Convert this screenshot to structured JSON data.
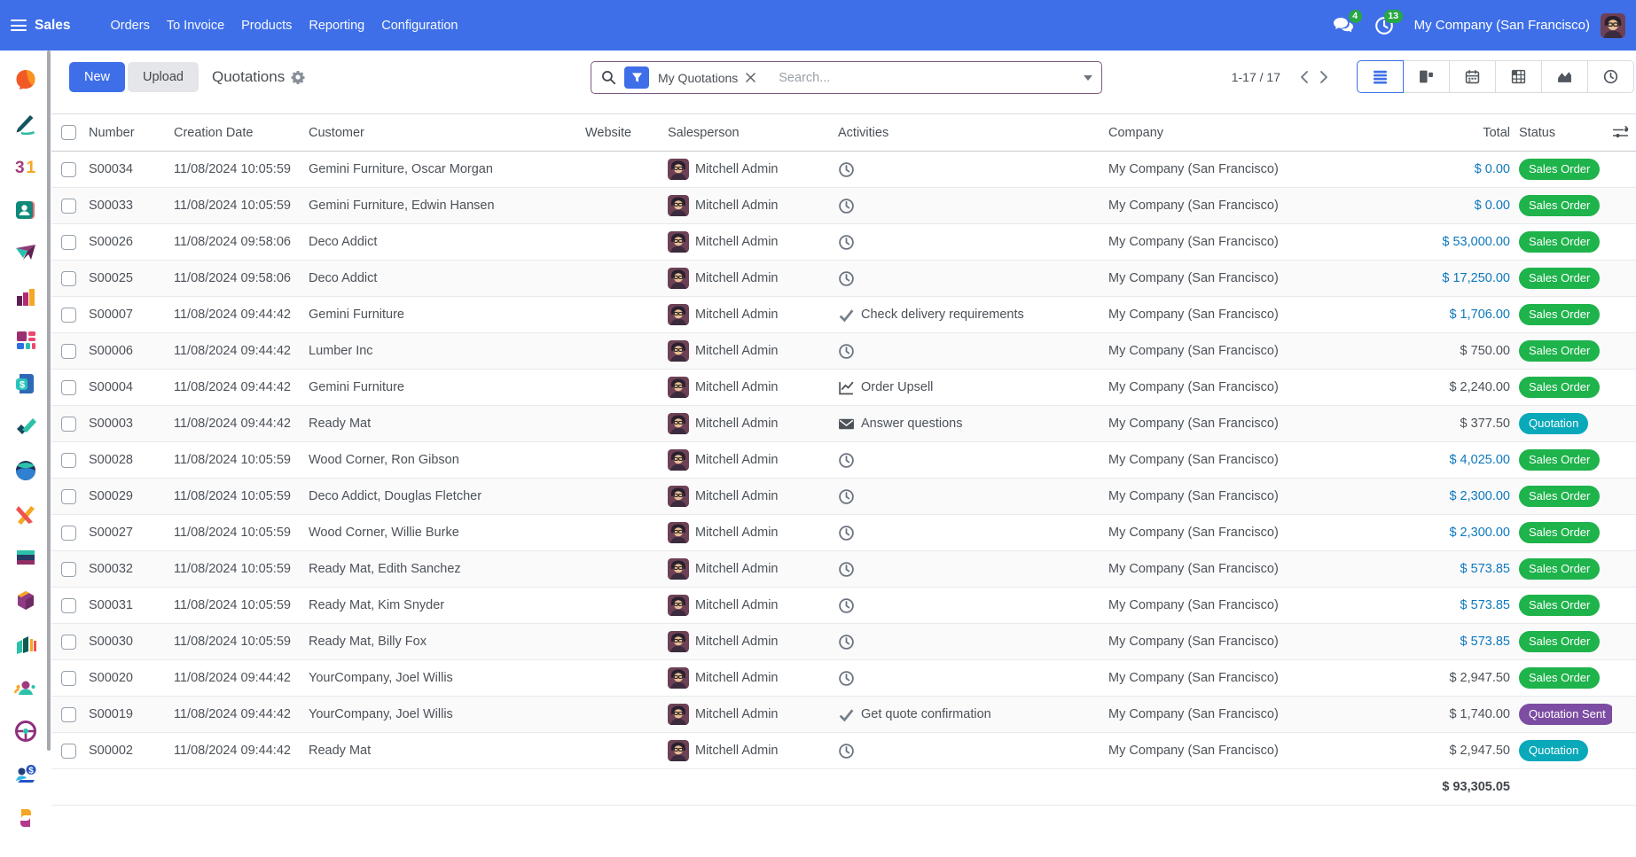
{
  "topbar": {
    "app_name": "Sales",
    "menus": [
      "Orders",
      "To Invoice",
      "Products",
      "Reporting",
      "Configuration"
    ],
    "messages_badge": "4",
    "activities_badge": "13",
    "company": "My Company (San Francisco)"
  },
  "sidebar": {
    "app_icons": [
      "discuss",
      "knowledge",
      "calendar",
      "contacts",
      "crm",
      "sales",
      "dashboards",
      "accounting",
      "todo",
      "website",
      "expenses",
      "elearning",
      "inventory",
      "marketing",
      "employees",
      "fleet",
      "payroll",
      "studio"
    ]
  },
  "control_panel": {
    "new_label": "New",
    "upload_label": "Upload",
    "title": "Quotations",
    "search": {
      "placeholder": "Search...",
      "filter": "My Quotations"
    },
    "pager": "1-17 / 17"
  },
  "table": {
    "columns": [
      "Number",
      "Creation Date",
      "Customer",
      "Website",
      "Salesperson",
      "Activities",
      "Company",
      "Total",
      "Status"
    ],
    "footer_total": "$ 93,305.05",
    "rows": [
      {
        "number": "S00034",
        "date": "11/08/2024 10:05:59",
        "customer": "Gemini Furniture, Oscar Morgan",
        "website": "",
        "salesperson": "Mitchell Admin",
        "activity_icon": "clock",
        "activity_label": "",
        "company": "My Company (San Francisco)",
        "total": "$ 0.00",
        "total_link": true,
        "status": "Sales Order",
        "status_variant": "success"
      },
      {
        "number": "S00033",
        "date": "11/08/2024 10:05:59",
        "customer": "Gemini Furniture, Edwin Hansen",
        "website": "",
        "salesperson": "Mitchell Admin",
        "activity_icon": "clock",
        "activity_label": "",
        "company": "My Company (San Francisco)",
        "total": "$ 0.00",
        "total_link": true,
        "status": "Sales Order",
        "status_variant": "success"
      },
      {
        "number": "S00026",
        "date": "11/08/2024 09:58:06",
        "customer": "Deco Addict",
        "website": "",
        "salesperson": "Mitchell Admin",
        "activity_icon": "clock",
        "activity_label": "",
        "company": "My Company (San Francisco)",
        "total": "$ 53,000.00",
        "total_link": true,
        "status": "Sales Order",
        "status_variant": "success"
      },
      {
        "number": "S00025",
        "date": "11/08/2024 09:58:06",
        "customer": "Deco Addict",
        "website": "",
        "salesperson": "Mitchell Admin",
        "activity_icon": "clock",
        "activity_label": "",
        "company": "My Company (San Francisco)",
        "total": "$ 17,250.00",
        "total_link": true,
        "status": "Sales Order",
        "status_variant": "success"
      },
      {
        "number": "S00007",
        "date": "11/08/2024 09:44:42",
        "customer": "Gemini Furniture",
        "website": "",
        "salesperson": "Mitchell Admin",
        "activity_icon": "check",
        "activity_label": "Check delivery requirements",
        "company": "My Company (San Francisco)",
        "total": "$ 1,706.00",
        "total_link": true,
        "status": "Sales Order",
        "status_variant": "success"
      },
      {
        "number": "S00006",
        "date": "11/08/2024 09:44:42",
        "customer": "Lumber Inc",
        "website": "",
        "salesperson": "Mitchell Admin",
        "activity_icon": "clock",
        "activity_label": "",
        "company": "My Company (San Francisco)",
        "total": "$ 750.00",
        "total_link": false,
        "status": "Sales Order",
        "status_variant": "success"
      },
      {
        "number": "S00004",
        "date": "11/08/2024 09:44:42",
        "customer": "Gemini Furniture",
        "website": "",
        "salesperson": "Mitchell Admin",
        "activity_icon": "chart",
        "activity_label": "Order Upsell",
        "company": "My Company (San Francisco)",
        "total": "$ 2,240.00",
        "total_link": false,
        "status": "Sales Order",
        "status_variant": "success"
      },
      {
        "number": "S00003",
        "date": "11/08/2024 09:44:42",
        "customer": "Ready Mat",
        "website": "",
        "salesperson": "Mitchell Admin",
        "activity_icon": "envelope",
        "activity_label": "Answer questions",
        "company": "My Company (San Francisco)",
        "total": "$ 377.50",
        "total_link": false,
        "status": "Quotation",
        "status_variant": "info"
      },
      {
        "number": "S00028",
        "date": "11/08/2024 10:05:59",
        "customer": "Wood Corner, Ron Gibson",
        "website": "",
        "salesperson": "Mitchell Admin",
        "activity_icon": "clock",
        "activity_label": "",
        "company": "My Company (San Francisco)",
        "total": "$ 4,025.00",
        "total_link": true,
        "status": "Sales Order",
        "status_variant": "success"
      },
      {
        "number": "S00029",
        "date": "11/08/2024 10:05:59",
        "customer": "Deco Addict, Douglas Fletcher",
        "website": "",
        "salesperson": "Mitchell Admin",
        "activity_icon": "clock",
        "activity_label": "",
        "company": "My Company (San Francisco)",
        "total": "$ 2,300.00",
        "total_link": true,
        "status": "Sales Order",
        "status_variant": "success"
      },
      {
        "number": "S00027",
        "date": "11/08/2024 10:05:59",
        "customer": "Wood Corner, Willie Burke",
        "website": "",
        "salesperson": "Mitchell Admin",
        "activity_icon": "clock",
        "activity_label": "",
        "company": "My Company (San Francisco)",
        "total": "$ 2,300.00",
        "total_link": true,
        "status": "Sales Order",
        "status_variant": "success"
      },
      {
        "number": "S00032",
        "date": "11/08/2024 10:05:59",
        "customer": "Ready Mat, Edith Sanchez",
        "website": "",
        "salesperson": "Mitchell Admin",
        "activity_icon": "clock",
        "activity_label": "",
        "company": "My Company (San Francisco)",
        "total": "$ 573.85",
        "total_link": true,
        "status": "Sales Order",
        "status_variant": "success"
      },
      {
        "number": "S00031",
        "date": "11/08/2024 10:05:59",
        "customer": "Ready Mat, Kim Snyder",
        "website": "",
        "salesperson": "Mitchell Admin",
        "activity_icon": "clock",
        "activity_label": "",
        "company": "My Company (San Francisco)",
        "total": "$ 573.85",
        "total_link": true,
        "status": "Sales Order",
        "status_variant": "success"
      },
      {
        "number": "S00030",
        "date": "11/08/2024 10:05:59",
        "customer": "Ready Mat, Billy Fox",
        "website": "",
        "salesperson": "Mitchell Admin",
        "activity_icon": "clock",
        "activity_label": "",
        "company": "My Company (San Francisco)",
        "total": "$ 573.85",
        "total_link": true,
        "status": "Sales Order",
        "status_variant": "success"
      },
      {
        "number": "S00020",
        "date": "11/08/2024 09:44:42",
        "customer": "YourCompany, Joel Willis",
        "website": "",
        "salesperson": "Mitchell Admin",
        "activity_icon": "clock",
        "activity_label": "",
        "company": "My Company (San Francisco)",
        "total": "$ 2,947.50",
        "total_link": false,
        "status": "Sales Order",
        "status_variant": "success"
      },
      {
        "number": "S00019",
        "date": "11/08/2024 09:44:42",
        "customer": "YourCompany, Joel Willis",
        "website": "",
        "salesperson": "Mitchell Admin",
        "activity_icon": "check",
        "activity_label": "Get quote confirmation",
        "company": "My Company (San Francisco)",
        "total": "$ 1,740.00",
        "total_link": false,
        "status": "Quotation Sent",
        "status_variant": "sent"
      },
      {
        "number": "S00002",
        "date": "11/08/2024 09:44:42",
        "customer": "Ready Mat",
        "website": "",
        "salesperson": "Mitchell Admin",
        "activity_icon": "clock",
        "activity_label": "",
        "company": "My Company (San Francisco)",
        "total": "$ 2,947.50",
        "total_link": false,
        "status": "Quotation",
        "status_variant": "info"
      }
    ]
  },
  "colors": {
    "topbar": "#3e6fe8",
    "accent": "#3e6fe8",
    "total_link": "#0d78bd",
    "badge_success": "#1eb34b",
    "badge_info": "#09a9ba",
    "badge_sent": "#7c4da2",
    "badge_text": "#ffffff"
  }
}
